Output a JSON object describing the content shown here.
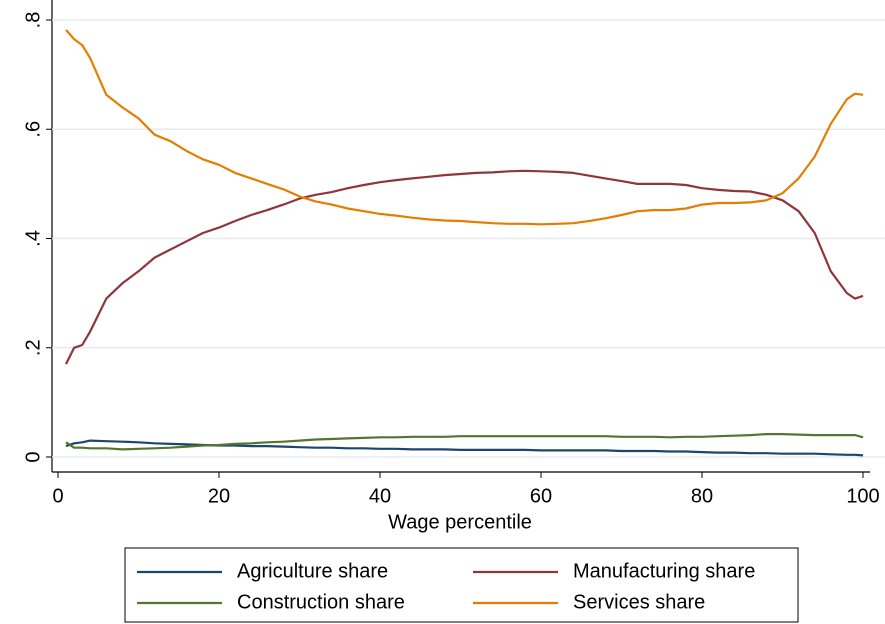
{
  "chart_data": {
    "type": "line",
    "xlabel": "Wage percentile",
    "x": [
      1,
      2,
      3,
      4,
      6,
      8,
      10,
      12,
      14,
      16,
      18,
      20,
      22,
      24,
      26,
      28,
      30,
      32,
      34,
      36,
      38,
      40,
      42,
      44,
      46,
      48,
      50,
      52,
      54,
      56,
      58,
      60,
      62,
      64,
      66,
      68,
      70,
      72,
      74,
      76,
      78,
      80,
      82,
      84,
      86,
      88,
      90,
      92,
      94,
      96,
      98,
      99,
      100
    ],
    "series": [
      {
        "name": "Agriculture share",
        "color": "#1a476f",
        "values": [
          0.02,
          0.025,
          0.027,
          0.03,
          0.029,
          0.028,
          0.027,
          0.025,
          0.024,
          0.023,
          0.022,
          0.021,
          0.021,
          0.02,
          0.02,
          0.019,
          0.018,
          0.017,
          0.017,
          0.016,
          0.016,
          0.015,
          0.015,
          0.014,
          0.014,
          0.014,
          0.013,
          0.013,
          0.013,
          0.013,
          0.013,
          0.012,
          0.012,
          0.012,
          0.012,
          0.012,
          0.011,
          0.011,
          0.011,
          0.01,
          0.01,
          0.009,
          0.008,
          0.008,
          0.007,
          0.007,
          0.006,
          0.006,
          0.006,
          0.005,
          0.004,
          0.004,
          0.003
        ]
      },
      {
        "name": "Manufacturing share",
        "color": "#90353b",
        "values": [
          0.17,
          0.2,
          0.205,
          0.23,
          0.29,
          0.318,
          0.34,
          0.365,
          0.38,
          0.395,
          0.41,
          0.42,
          0.432,
          0.443,
          0.452,
          0.462,
          0.473,
          0.48,
          0.485,
          0.492,
          0.498,
          0.503,
          0.507,
          0.51,
          0.513,
          0.516,
          0.518,
          0.52,
          0.521,
          0.523,
          0.524,
          0.523,
          0.522,
          0.52,
          0.515,
          0.51,
          0.505,
          0.5,
          0.5,
          0.5,
          0.498,
          0.492,
          0.489,
          0.487,
          0.486,
          0.48,
          0.47,
          0.45,
          0.41,
          0.34,
          0.3,
          0.29,
          0.295
        ]
      },
      {
        "name": "Construction share",
        "color": "#55752f",
        "values": [
          0.027,
          0.017,
          0.017,
          0.016,
          0.016,
          0.014,
          0.015,
          0.016,
          0.017,
          0.019,
          0.021,
          0.022,
          0.024,
          0.025,
          0.027,
          0.028,
          0.03,
          0.032,
          0.033,
          0.034,
          0.035,
          0.036,
          0.036,
          0.037,
          0.037,
          0.037,
          0.038,
          0.038,
          0.038,
          0.038,
          0.038,
          0.038,
          0.038,
          0.038,
          0.038,
          0.038,
          0.037,
          0.037,
          0.037,
          0.036,
          0.037,
          0.037,
          0.038,
          0.039,
          0.04,
          0.042,
          0.042,
          0.041,
          0.04,
          0.04,
          0.04,
          0.04,
          0.036
        ]
      },
      {
        "name": "Services share",
        "color": "#e37e00",
        "values": [
          0.782,
          0.765,
          0.754,
          0.73,
          0.663,
          0.64,
          0.62,
          0.59,
          0.578,
          0.56,
          0.545,
          0.535,
          0.52,
          0.51,
          0.5,
          0.49,
          0.477,
          0.468,
          0.462,
          0.455,
          0.45,
          0.445,
          0.442,
          0.438,
          0.435,
          0.433,
          0.432,
          0.43,
          0.428,
          0.427,
          0.427,
          0.426,
          0.427,
          0.428,
          0.432,
          0.437,
          0.443,
          0.45,
          0.452,
          0.452,
          0.455,
          0.462,
          0.465,
          0.465,
          0.466,
          0.47,
          0.483,
          0.51,
          0.55,
          0.61,
          0.655,
          0.665,
          0.663
        ]
      }
    ],
    "xlim": [
      0,
      100
    ],
    "xticks": [
      0,
      20,
      40,
      60,
      80,
      100
    ],
    "ylim": [
      0,
      0.8
    ],
    "yticks": [
      0,
      {
        "value": 0.2,
        "label": ".2"
      },
      {
        "value": 0.4,
        "label": ".4"
      },
      {
        "value": 0.6,
        "label": ".6"
      },
      {
        "value": 0.8,
        "label": ".8"
      }
    ],
    "grid": true
  }
}
